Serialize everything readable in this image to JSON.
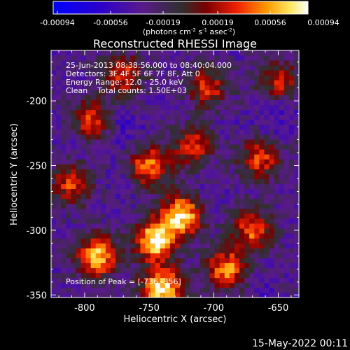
{
  "colorbar": {
    "tick_labels": [
      "-0.00094",
      "-0.00056",
      "-0.00019",
      "0.00019",
      "0.00056",
      "0.00094"
    ],
    "units_prefix": "(photons cm",
    "units_exp1": "-2",
    "units_mid": " s",
    "units_exp2": "-1",
    "units_mid2": " asec",
    "units_exp3": "-2",
    "units_suffix": ")",
    "range": [
      -0.00094,
      0.00094
    ],
    "colormap": "rhessi-blue-purple-red-yellow-white"
  },
  "chart_data": {
    "type": "heatmap",
    "title": "Reconstructed RHESSI Image",
    "xlabel": "Heliocentric X (arcsec)",
    "ylabel": "Heliocentric Y (arcsec)",
    "xlim": [
      -826,
      -634
    ],
    "ylim": [
      -352,
      -161
    ],
    "x_ticks": [
      -800,
      -750,
      -700,
      -650
    ],
    "y_ticks": [
      -350,
      -300,
      -250,
      -200
    ],
    "x_tick_labels": [
      "-800",
      "-750",
      "-700",
      "-650"
    ],
    "y_tick_labels": [
      "-350",
      "-300",
      "-250",
      "-200"
    ],
    "grid": false,
    "annotations": [
      "25-Jun-2013 08:38:56.000 to 08:40:04.000",
      "Detectors: 3F 4F 5F 6F 7F 8F, Att 0",
      "Energy Range: 12.0 - 25.0 keV",
      "Clean    Total counts: 1.50E+03",
      "Position of Peak = [-736,-356]"
    ],
    "peak": [
      -736,
      -356
    ],
    "hot_spots": [
      {
        "x": -790,
        "y": -320,
        "value": 0.00075
      },
      {
        "x": -745,
        "y": -308,
        "value": 0.00094
      },
      {
        "x": -725,
        "y": -288,
        "value": 0.00085
      },
      {
        "x": -750,
        "y": -250,
        "value": 0.0006
      },
      {
        "x": -795,
        "y": -215,
        "value": 0.00055
      },
      {
        "x": -740,
        "y": -345,
        "value": 0.00088
      },
      {
        "x": -690,
        "y": -330,
        "value": 0.0006
      },
      {
        "x": -670,
        "y": -300,
        "value": 0.0005
      },
      {
        "x": -665,
        "y": -245,
        "value": 0.00045
      },
      {
        "x": -705,
        "y": -190,
        "value": 0.0004
      },
      {
        "x": -810,
        "y": -265,
        "value": 0.0004
      },
      {
        "x": -770,
        "y": -180,
        "value": 0.0004
      },
      {
        "x": -650,
        "y": -185,
        "value": 0.00035
      },
      {
        "x": -715,
        "y": -235,
        "value": 0.0004
      }
    ],
    "cold_spots": [
      {
        "x": -805,
        "y": -222,
        "value": -0.00045
      },
      {
        "x": -770,
        "y": -220,
        "value": -0.0005
      },
      {
        "x": -775,
        "y": -260,
        "value": -0.0004
      },
      {
        "x": -650,
        "y": -210,
        "value": -0.0005
      },
      {
        "x": -705,
        "y": -270,
        "value": -0.00035
      },
      {
        "x": -660,
        "y": -350,
        "value": -0.0004
      },
      {
        "x": -730,
        "y": -200,
        "value": -0.00035
      },
      {
        "x": -690,
        "y": -225,
        "value": -0.00035
      }
    ]
  },
  "footer": {
    "timestamp": "15-May-2022 00:11"
  }
}
